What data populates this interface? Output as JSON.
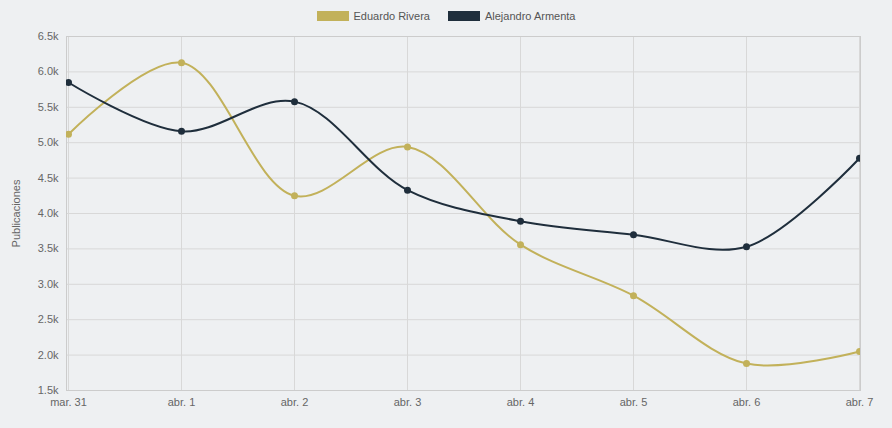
{
  "chart_data": {
    "type": "line",
    "y_label": "Publicaciones",
    "categories": [
      "mar. 31",
      "abr. 1",
      "abr. 2",
      "abr. 3",
      "abr. 4",
      "abr. 5",
      "abr. 6",
      "abr. 7"
    ],
    "series": [
      {
        "name": "Eduardo Rivera",
        "color": "#c2b15a",
        "marker": "circle",
        "values": [
          5120,
          6130,
          4250,
          4940,
          3560,
          2840,
          1880,
          2050
        ]
      },
      {
        "name": "Alejandro Armenta",
        "color": "#1f2e3c",
        "marker": "circle",
        "values": [
          5850,
          5160,
          5580,
          4330,
          3890,
          3700,
          3530,
          4780
        ]
      }
    ],
    "ylim": [
      1500,
      6500
    ],
    "yticks": [
      {
        "value": 1500,
        "label": "1.5k"
      },
      {
        "value": 2000,
        "label": "2.0k"
      },
      {
        "value": 2500,
        "label": "2.5k"
      },
      {
        "value": 3000,
        "label": "3.0k"
      },
      {
        "value": 3500,
        "label": "3.5k"
      },
      {
        "value": 4000,
        "label": "4.0k"
      },
      {
        "value": 4500,
        "label": "4.5k"
      },
      {
        "value": 5000,
        "label": "5.0k"
      },
      {
        "value": 5500,
        "label": "5.5k"
      },
      {
        "value": 6000,
        "label": "6.0k"
      },
      {
        "value": 6500,
        "label": "6.5k"
      }
    ],
    "grid": true,
    "legend": "top"
  }
}
